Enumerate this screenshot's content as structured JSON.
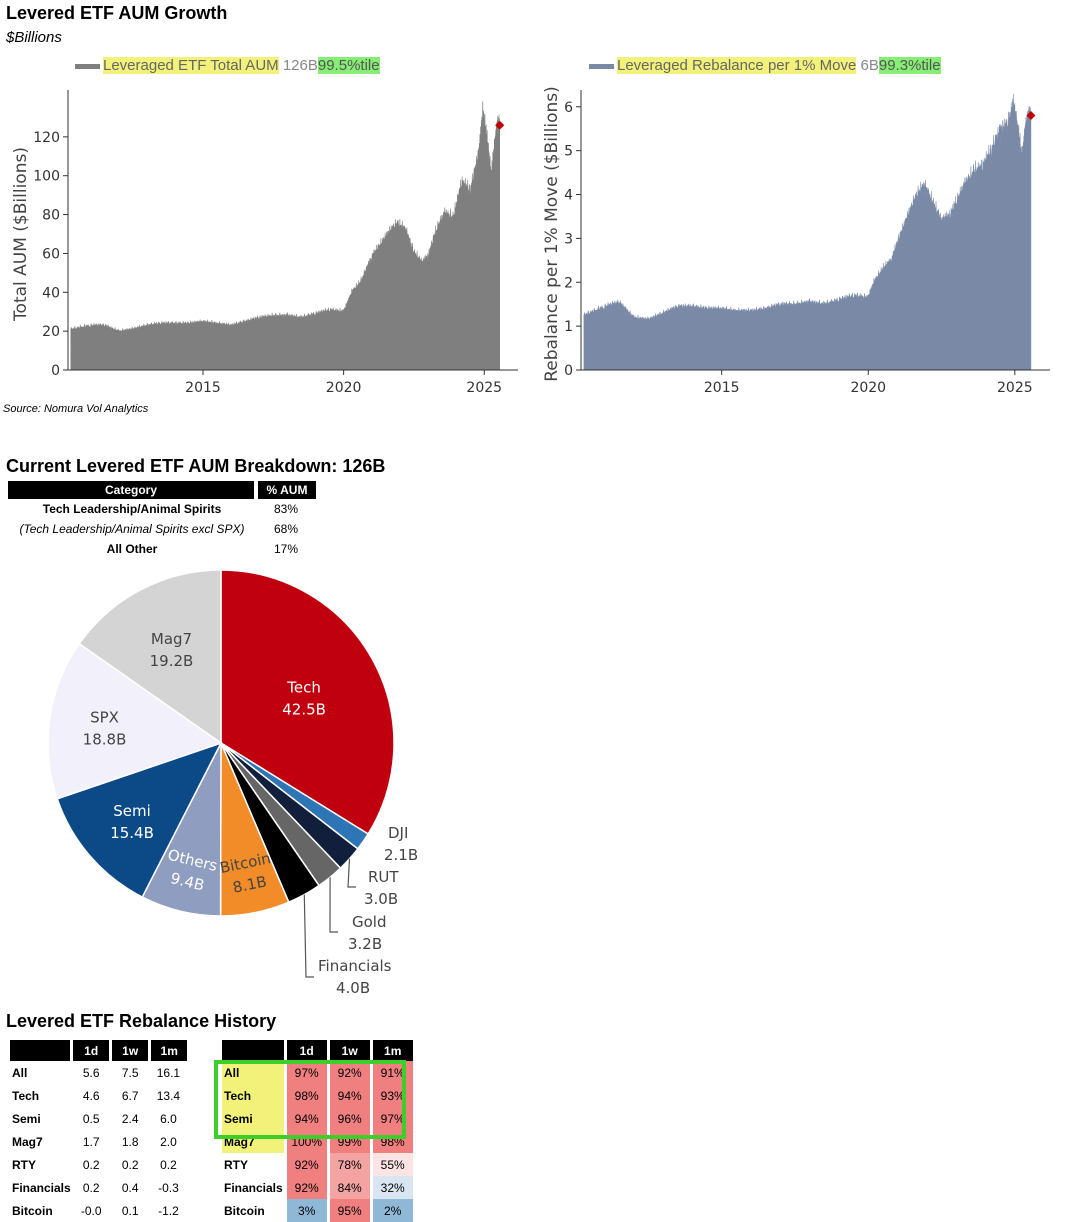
{
  "header": {
    "title": "Levered ETF AUM Growth",
    "subtitle": "$Billions",
    "source": "Source: Nomura Vol Analytics"
  },
  "chart_data": [
    {
      "type": "area",
      "legend": {
        "name": "Leveraged ETF Total AUM",
        "value": "126B",
        "pctile": "99.5%tile"
      },
      "ylabel": "Total AUM ($Billions)",
      "xticks": [
        "2015",
        "2020",
        "2025"
      ],
      "yticks": [
        "0",
        "20",
        "40",
        "60",
        "80",
        "100",
        "120"
      ],
      "ylim": [
        0,
        140
      ],
      "xlim": [
        2010.2,
        2026.2
      ],
      "color": "#7f7f7f",
      "marker_color": "#c00000",
      "x": [
        2010.3,
        2011.0,
        2011.5,
        2012.0,
        2012.5,
        2013.0,
        2013.5,
        2014.0,
        2014.5,
        2015.0,
        2015.5,
        2016.0,
        2016.5,
        2017.0,
        2017.5,
        2018.0,
        2018.5,
        2019.0,
        2019.5,
        2020.0,
        2020.3,
        2020.6,
        2021.0,
        2021.3,
        2021.6,
        2021.9,
        2022.2,
        2022.5,
        2022.8,
        2023.0,
        2023.3,
        2023.6,
        2023.9,
        2024.2,
        2024.5,
        2024.8,
        2024.95,
        2025.1,
        2025.25,
        2025.35,
        2025.45,
        2025.55
      ],
      "y": [
        21,
        23,
        23,
        20,
        21,
        23,
        24,
        24,
        24,
        25,
        24,
        23,
        25,
        27,
        28,
        28,
        27,
        29,
        31,
        30,
        40,
        45,
        58,
        64,
        70,
        75,
        72,
        60,
        55,
        58,
        72,
        80,
        78,
        96,
        92,
        110,
        132,
        118,
        100,
        112,
        124,
        126
      ],
      "last": {
        "x": 2025.55,
        "y": 126
      }
    },
    {
      "type": "area",
      "legend": {
        "name": "Leveraged Rebalance per 1% Move",
        "value": "6B",
        "pctile": "99.3%tile"
      },
      "ylabel": "Rebalance per 1% Move ($Billions)",
      "xticks": [
        "2015",
        "2020",
        "2025"
      ],
      "yticks": [
        "0",
        "1",
        "2",
        "3",
        "4",
        "5",
        "6"
      ],
      "ylim": [
        0,
        6.2
      ],
      "xlim": [
        2010.2,
        2026.2
      ],
      "color": "#7a8aa6",
      "marker_color": "#c00000",
      "x": [
        2010.3,
        2011.0,
        2011.5,
        2012.0,
        2012.5,
        2013.0,
        2013.5,
        2014.0,
        2014.5,
        2015.0,
        2015.5,
        2016.0,
        2016.5,
        2017.0,
        2017.5,
        2018.0,
        2018.5,
        2019.0,
        2019.5,
        2020.0,
        2020.2,
        2020.5,
        2020.8,
        2021.0,
        2021.3,
        2021.6,
        2021.9,
        2022.2,
        2022.5,
        2022.8,
        2023.0,
        2023.3,
        2023.6,
        2023.9,
        2024.2,
        2024.5,
        2024.8,
        2024.95,
        2025.1,
        2025.25,
        2025.35,
        2025.45,
        2025.55
      ],
      "y": [
        1.25,
        1.45,
        1.55,
        1.2,
        1.15,
        1.3,
        1.45,
        1.45,
        1.4,
        1.4,
        1.35,
        1.35,
        1.4,
        1.5,
        1.5,
        1.55,
        1.5,
        1.6,
        1.7,
        1.65,
        2.0,
        2.3,
        2.5,
        2.9,
        3.4,
        3.9,
        4.2,
        3.8,
        3.4,
        3.5,
        3.8,
        4.2,
        4.5,
        4.6,
        5.0,
        5.4,
        5.6,
        6.0,
        5.5,
        4.8,
        5.4,
        5.7,
        5.8
      ],
      "last": {
        "x": 2025.55,
        "y": 5.8
      }
    },
    {
      "type": "pie",
      "title": "Current Levered ETF AUM Breakdown: 126B",
      "slices": [
        {
          "name": "Tech",
          "value": 42.5,
          "label": "42.5B",
          "color": "#c0000e"
        },
        {
          "name": "DJI",
          "value": 2.1,
          "label": "2.1B",
          "color": "#2e75b6"
        },
        {
          "name": "RUT",
          "value": 3.0,
          "label": "3.0B",
          "color": "#111f3d"
        },
        {
          "name": "Gold",
          "value": 3.2,
          "label": "3.2B",
          "color": "#666666"
        },
        {
          "name": "Financials",
          "value": 4.0,
          "label": "4.0B",
          "color": "#000000"
        },
        {
          "name": "Bitcoin",
          "value": 8.1,
          "label": "8.1B",
          "color": "#f28c28"
        },
        {
          "name": "Others",
          "value": 9.4,
          "label": "9.4B",
          "color": "#8f9dc0"
        },
        {
          "name": "Semi",
          "value": 15.4,
          "label": "15.4B",
          "color": "#0b4a86"
        },
        {
          "name": "SPX",
          "value": 18.8,
          "label": "18.8B",
          "color": "#f2f0fa"
        },
        {
          "name": "Mag7",
          "value": 19.2,
          "label": "19.2B",
          "color": "#d4d4d4"
        }
      ]
    }
  ],
  "breakdown_table": {
    "headers": [
      "Category",
      "% AUM"
    ],
    "rows": [
      {
        "category": "Tech Leadership/Animal Spirits",
        "pct": "83%"
      },
      {
        "category": "(Tech Leadership/Animal Spirits excl SPX)",
        "pct": "68%"
      },
      {
        "category": "All Other",
        "pct": "17%"
      }
    ]
  },
  "rebalance": {
    "title": "Levered ETF Rebalance History",
    "headers": [
      "",
      "1d",
      "1w",
      "1m"
    ],
    "values_rows": [
      {
        "label": "All",
        "d1": "5.6",
        "w1": "7.5",
        "m1": "16.1"
      },
      {
        "label": "Tech",
        "d1": "4.6",
        "w1": "6.7",
        "m1": "13.4"
      },
      {
        "label": "Semi",
        "d1": "0.5",
        "w1": "2.4",
        "m1": "6.0"
      },
      {
        "label": "Mag7",
        "d1": "1.7",
        "w1": "1.8",
        "m1": "2.0"
      },
      {
        "label": "RTY",
        "d1": "0.2",
        "w1": "0.2",
        "m1": "0.2"
      },
      {
        "label": "Financials",
        "d1": "0.2",
        "w1": "0.4",
        "m1": "-0.3"
      },
      {
        "label": "Bitcoin",
        "d1": "-0.0",
        "w1": "0.1",
        "m1": "-1.2"
      }
    ],
    "pct_rows": [
      {
        "label": "All",
        "d1": "97%",
        "w1": "92%",
        "m1": "91%"
      },
      {
        "label": "Tech",
        "d1": "98%",
        "w1": "94%",
        "m1": "93%"
      },
      {
        "label": "Semi",
        "d1": "94%",
        "w1": "96%",
        "m1": "97%"
      },
      {
        "label": "Mag7",
        "d1": "100%",
        "w1": "99%",
        "m1": "98%"
      },
      {
        "label": "RTY",
        "d1": "92%",
        "w1": "78%",
        "m1": "55%"
      },
      {
        "label": "Financials",
        "d1": "92%",
        "w1": "84%",
        "m1": "32%"
      },
      {
        "label": "Bitcoin",
        "d1": "3%",
        "w1": "95%",
        "m1": "2%"
      }
    ],
    "highlight_color": "#f2f27a",
    "box_color": "#3ccf2a"
  }
}
